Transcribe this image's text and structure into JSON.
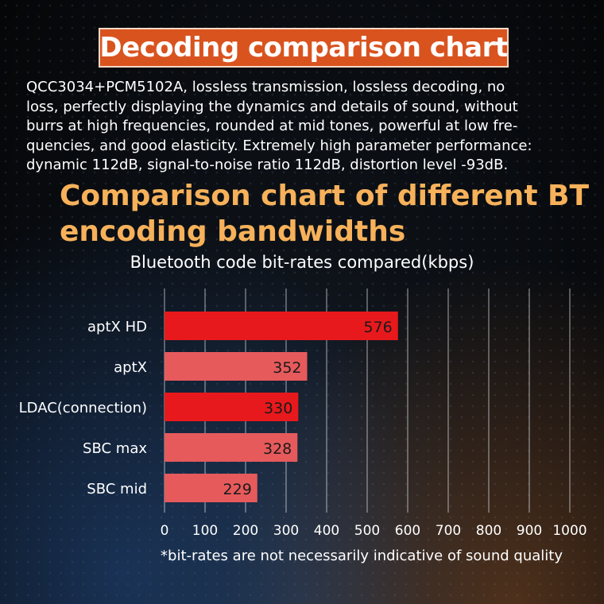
{
  "header": {
    "title": "Decoding comparison chart"
  },
  "description": {
    "lines": [
      "QCC3034+PCM5102A, lossless transmission, lossless decoding, no",
      "loss, perfectly displaying the dynamics and details of sound, without",
      "burrs at high frequencies, rounded at mid tones, powerful at low fre-",
      "quencies, and good elasticity. Extremely high parameter performance:",
      "dynamic 112dB, signal-to-noise ratio 112dB, distortion level -93dB."
    ]
  },
  "section": {
    "title_lines": [
      "Comparison chart of different BT",
      "encoding bandwidths"
    ]
  },
  "footnote": "*bit-rates are not necessarily indicative of sound quality",
  "chart_data": {
    "type": "bar",
    "orientation": "horizontal",
    "title": "Bluetooth code bit-rates compared(kbps)",
    "categories": [
      "aptX HD",
      "aptX",
      "LDAC(connection)",
      "SBC max",
      "SBC mid"
    ],
    "values": [
      576,
      352,
      330,
      328,
      229
    ],
    "data_labels": [
      "576",
      "352",
      "330",
      "328",
      "229"
    ],
    "bar_colors": [
      "#e8191c",
      "#e65a5c",
      "#e8191c",
      "#e65a5c",
      "#e65a5c"
    ],
    "xlim": [
      0,
      1000
    ],
    "xticks": [
      0,
      100,
      200,
      300,
      400,
      500,
      600,
      700,
      800,
      900,
      1000
    ],
    "xtick_labels": [
      "0",
      "100",
      "200",
      "300",
      "400",
      "500",
      "600",
      "700",
      "800",
      "900",
      "1000"
    ],
    "grid": "vertical",
    "legend": "none"
  }
}
